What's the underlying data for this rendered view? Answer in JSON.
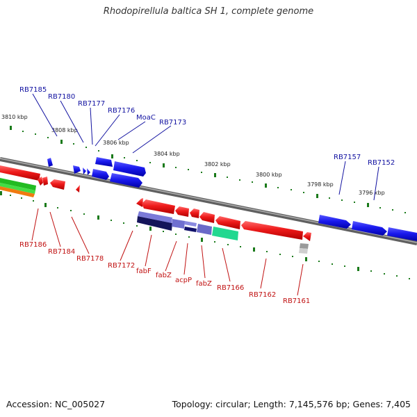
{
  "title": "Rhodopirellula baltica SH 1, complete genome",
  "footer": {
    "accession": "Accession: NC_005027",
    "topology": "Topology: circular; Length: 7,145,576 bp; Genes: 7,405"
  },
  "scale_labels": [
    "3810 kbp",
    "3808 kbp",
    "3806 kbp",
    "3804 kbp",
    "3802 kbp",
    "3800 kbp",
    "3798 kbp",
    "3796 kbp"
  ],
  "gene_labels_top": [
    "RB7185",
    "RB7180",
    "RB7177",
    "RB7176",
    "MoaC",
    "RB7173",
    "RB7157",
    "RB7152"
  ],
  "gene_labels_bottom": [
    "RB7186",
    "RB7184",
    "RB7178",
    "RB7172",
    "fabF",
    "fabZ",
    "acpP",
    "fabZ",
    "RB7166",
    "RB7162",
    "RB7161"
  ],
  "colors": {
    "forward": "#1010e0",
    "reverse": "#e81010",
    "backbone": "#808080",
    "ticks": "#1a7a1a",
    "top_label": "#1010a0",
    "bottom_label": "#c01010"
  }
}
